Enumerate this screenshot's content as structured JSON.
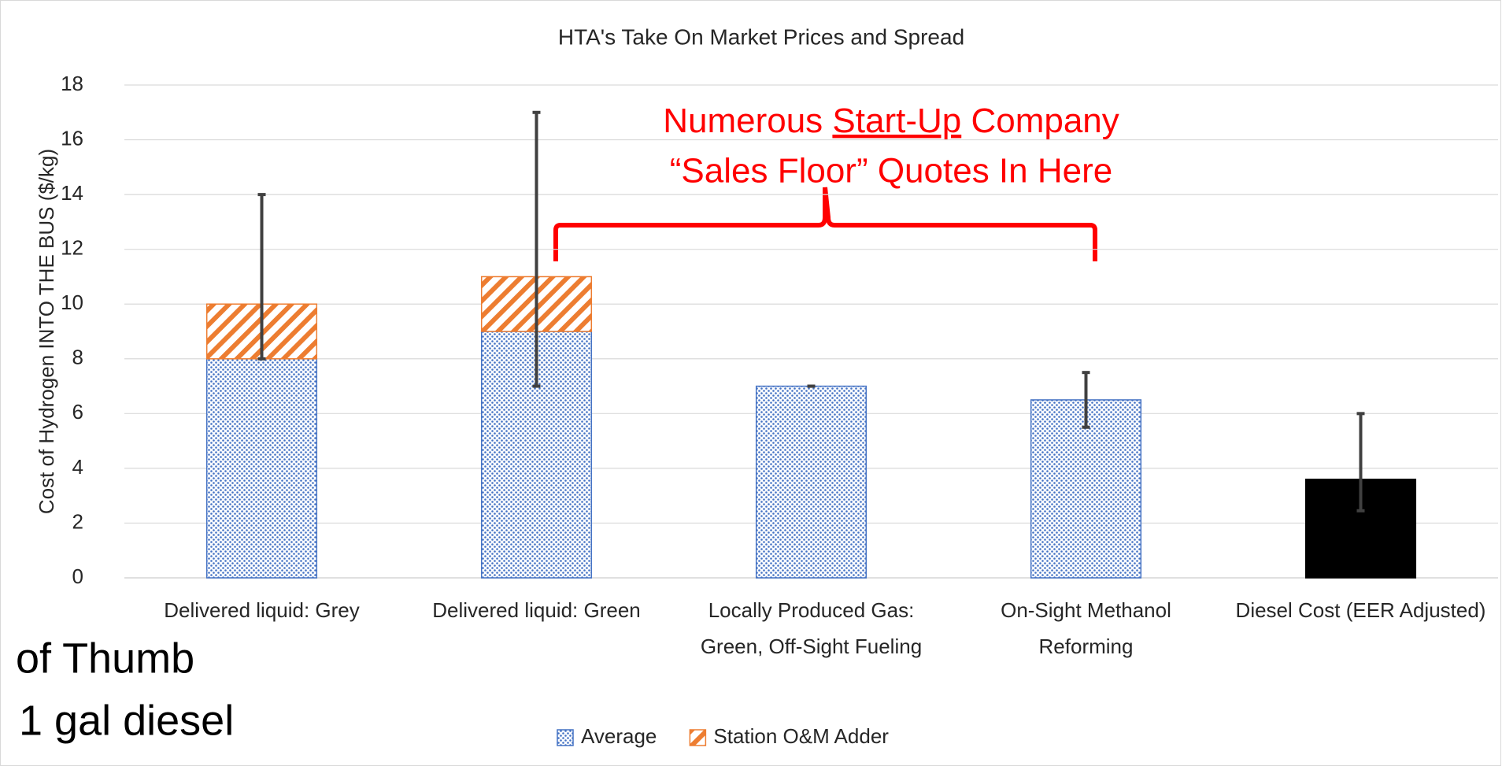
{
  "chart_data": {
    "type": "stacked_bar",
    "title": "HTA's Take On Market Prices and Spread",
    "ylabel": "Cost of Hydrogen INTO THE BUS ($/kg)",
    "categories": [
      "Delivered liquid: Grey",
      "Delivered liquid: Green",
      "Locally Produced Gas: Green, Off-Sight Fueling",
      "On-Sight Methanol Reforming",
      "Diesel Cost (EER Adjusted)"
    ],
    "series": [
      {
        "name": "Average",
        "color": "#4472c4",
        "pattern": "dots",
        "colors": [
          "#4472c4",
          "#4472c4",
          "#4472c4",
          "#4472c4",
          "#000000"
        ],
        "values": [
          8,
          9,
          7,
          6.5,
          3.6
        ]
      },
      {
        "name": "Station O&M Adder",
        "color": "#ed7d31",
        "pattern": "hatch",
        "values": [
          2,
          2,
          0,
          0,
          0
        ]
      }
    ],
    "error_bars": [
      {
        "low": 8,
        "high": 14
      },
      {
        "low": 7,
        "high": 17
      },
      {
        "low": 7,
        "high": 7
      },
      {
        "low": 5.5,
        "high": 7.5
      },
      {
        "low": 2.45,
        "high": 6
      }
    ],
    "ylim": [
      0,
      18
    ],
    "yticks": [
      0,
      2,
      4,
      6,
      8,
      10,
      12,
      14,
      16,
      18
    ],
    "grid": true,
    "legend": "bottom",
    "annotations": {
      "bracket_text": {
        "parts": [
          "Numerous",
          "Start-Up",
          "Company"
        ],
        "underline": 1,
        "line2": "“Sales Floor” Quotes In Here"
      },
      "cut_off_text": [
        "of Thumb",
        "1 gal diesel"
      ]
    }
  }
}
